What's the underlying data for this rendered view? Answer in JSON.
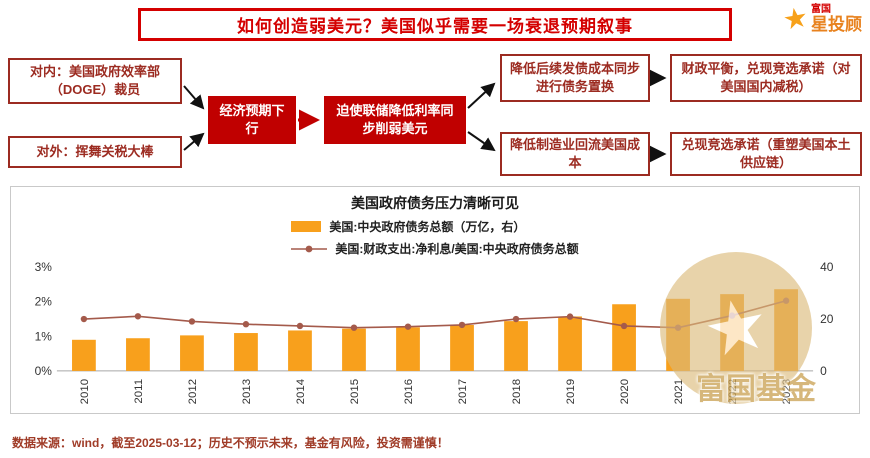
{
  "header": {
    "title": "如何创造弱美元？美国似乎需要一场衰退预期叙事",
    "logo": {
      "brand": "富国",
      "product": "星投顾"
    }
  },
  "flow": {
    "boxes": {
      "internal": "对内：美国政府效率部（DOGE）裁员",
      "external": "对外：挥舞关税大棒",
      "econ": "经济预期下行",
      "fed": "迫使联储降低利率同步削弱美元",
      "debt_swap": "降低后续发债成本同步进行债务置换",
      "fiscal": "财政平衡，兑现竞选承诺（对美国国内减税）",
      "mfg": "降低制造业回流美国成本",
      "promise": "兑现竞选承诺（重塑美国本土供应链）"
    }
  },
  "chart_data": {
    "type": "bar",
    "title": "美国政府债务压力清晰可见",
    "categories": [
      "2010",
      "2011",
      "2012",
      "2013",
      "2014",
      "2015",
      "2016",
      "2017",
      "2018",
      "2019",
      "2020",
      "2021",
      "2022",
      "2023"
    ],
    "series": [
      {
        "name": "美国:中央政府债务总额（万亿，右）",
        "type": "bar",
        "axis": "right",
        "color": "#F8A01C",
        "values": [
          12.0,
          12.6,
          13.7,
          14.6,
          15.6,
          16.3,
          16.8,
          17.7,
          19.2,
          21.0,
          25.7,
          27.8,
          29.6,
          31.5
        ]
      },
      {
        "name": "美国:财政支出:净利息/美国:中央政府债务总额",
        "type": "line",
        "axis": "left",
        "color": "#A45A4B",
        "values": [
          1.5,
          1.58,
          1.43,
          1.35,
          1.3,
          1.25,
          1.28,
          1.33,
          1.5,
          1.57,
          1.3,
          1.25,
          1.6,
          2.03
        ]
      }
    ],
    "left_axis": {
      "labels": [
        "0%",
        "1%",
        "2%",
        "3%"
      ],
      "values": [
        0,
        1,
        2,
        3
      ],
      "min": 0,
      "max": 3
    },
    "right_axis": {
      "labels": [
        "0",
        "20",
        "40"
      ],
      "values": [
        0,
        20,
        40
      ],
      "min": 0,
      "max": 40
    },
    "legend_position": "top",
    "grid": false
  },
  "footer": {
    "note": "数据来源：wind，截至2025-03-12；历史不预示未来，基金有风险，投资需谨慎！"
  },
  "watermark": {
    "text": "富国基金"
  },
  "colors": {
    "accent_red": "#C00000",
    "dark_red": "#9C2B21",
    "bar_orange": "#F8A01C",
    "line_brown": "#A45A4B",
    "gold": "#D8B878"
  }
}
